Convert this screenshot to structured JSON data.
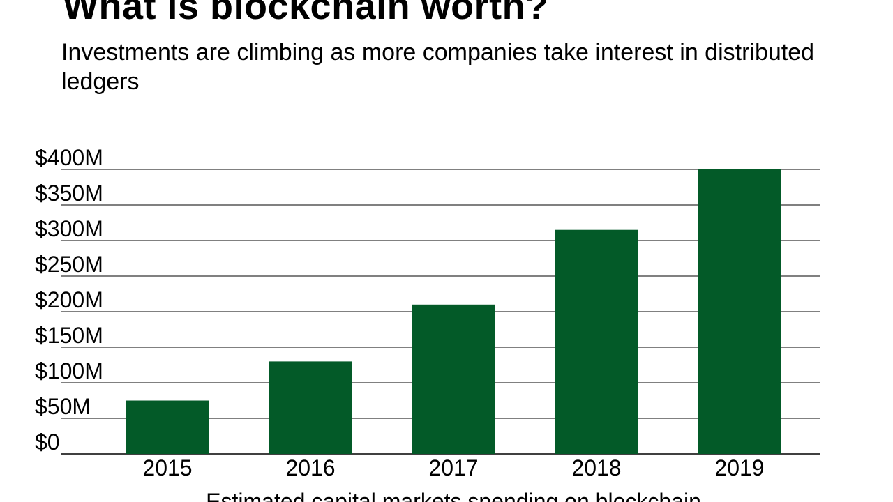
{
  "header": {
    "title": "What is blockchain worth?",
    "subtitle": "Investments are climbing as more companies take interest in distributed ledgers"
  },
  "chart_data": {
    "type": "bar",
    "categories": [
      "2015",
      "2016",
      "2017",
      "2018",
      "2019"
    ],
    "values": [
      75,
      130,
      210,
      315,
      400
    ],
    "yticks": [
      0,
      50,
      100,
      150,
      200,
      250,
      300,
      350,
      400
    ],
    "ytick_labels": [
      "$0",
      "$50M",
      "$100M",
      "$150M",
      "$200M",
      "$250M",
      "$300M",
      "$350M",
      "$400M"
    ],
    "ylim": [
      0,
      400
    ],
    "xlabel": "Estimated capital markets spending on blockchain",
    "ylabel": "",
    "grid": true,
    "bar_color": "#035a28"
  }
}
